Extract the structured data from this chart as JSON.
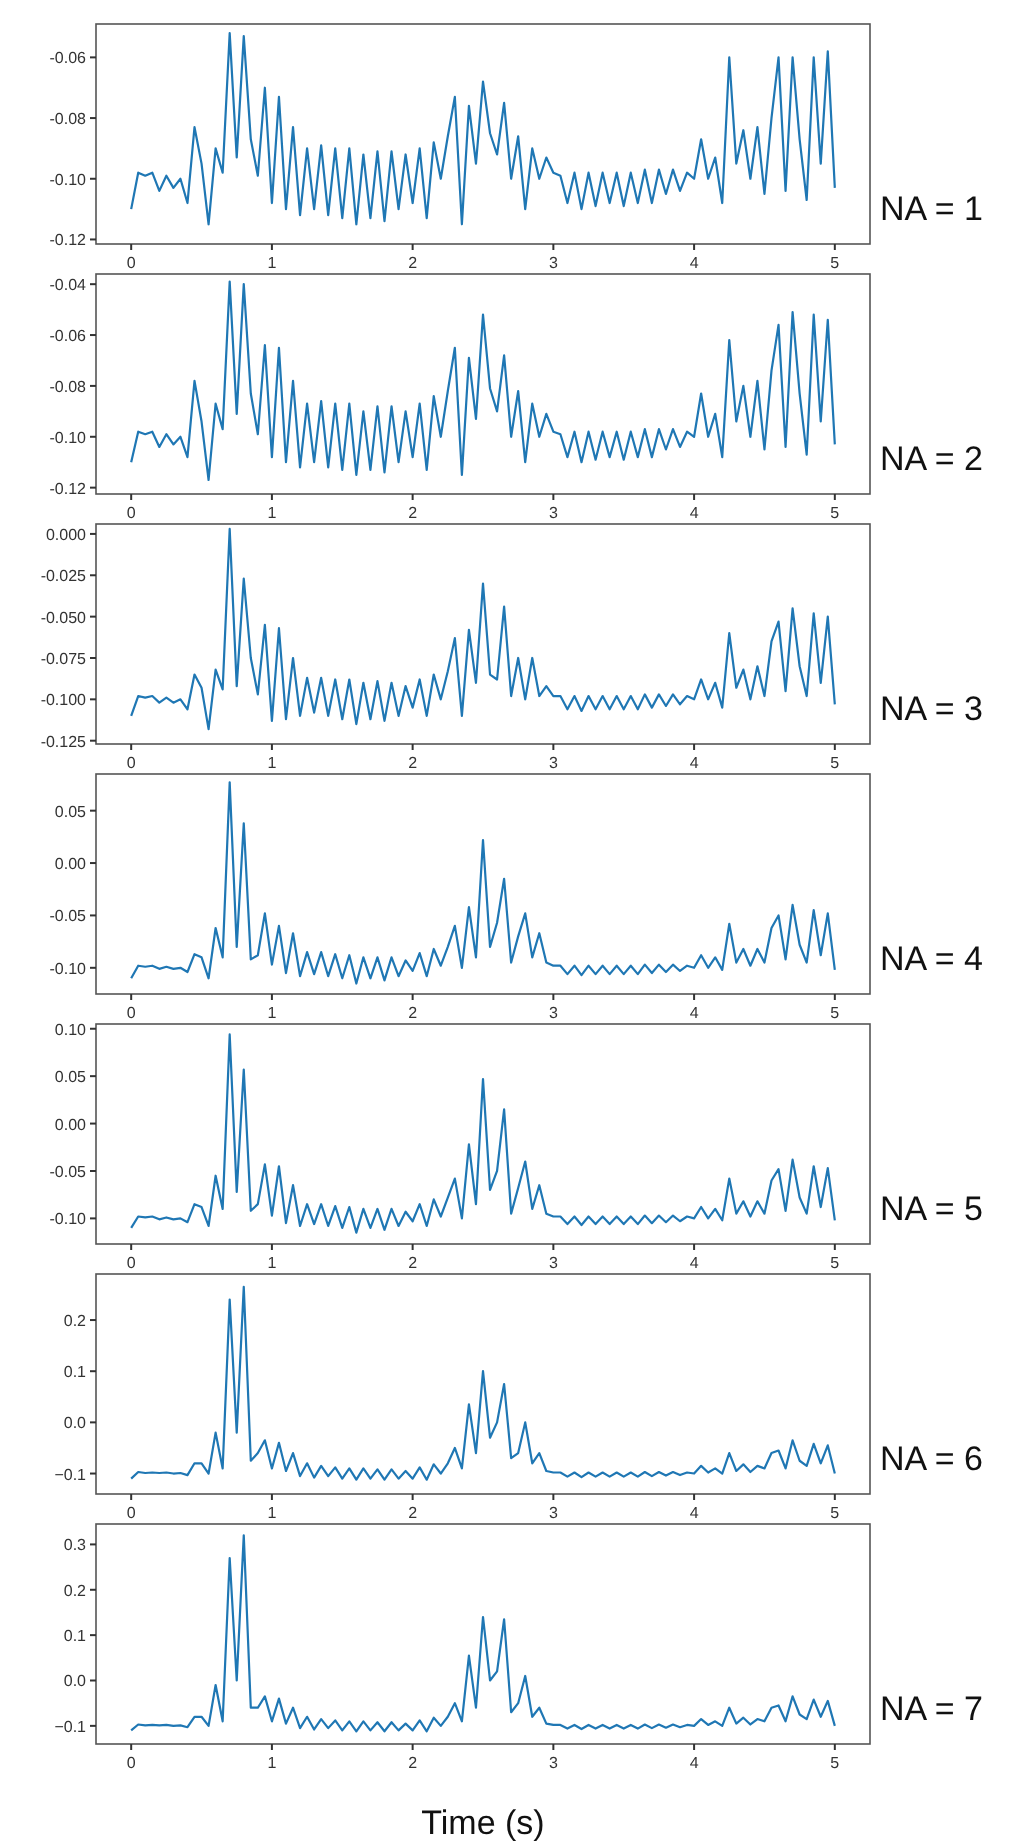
{
  "chart_data": [
    {
      "type": "line",
      "title": "NA = 1",
      "x": [
        0,
        0.05,
        0.1,
        0.15,
        0.2,
        0.25,
        0.3,
        0.35,
        0.4,
        0.45,
        0.5,
        0.55,
        0.6,
        0.65,
        0.7,
        0.75,
        0.8,
        0.85,
        0.9,
        0.95,
        1,
        1.05,
        1.1,
        1.15,
        1.2,
        1.25,
        1.3,
        1.35,
        1.4,
        1.45,
        1.5,
        1.55,
        1.6,
        1.65,
        1.7,
        1.75,
        1.8,
        1.85,
        1.9,
        1.95,
        2,
        2.05,
        2.1,
        2.15,
        2.2,
        2.25,
        2.3,
        2.35,
        2.4,
        2.45,
        2.5,
        2.55,
        2.6,
        2.65,
        2.7,
        2.75,
        2.8,
        2.85,
        2.9,
        2.95,
        3,
        3.05,
        3.1,
        3.15,
        3.2,
        3.25,
        3.3,
        3.35,
        3.4,
        3.45,
        3.5,
        3.55,
        3.6,
        3.65,
        3.7,
        3.75,
        3.8,
        3.85,
        3.9,
        3.95,
        4,
        4.05,
        4.1,
        4.15,
        4.2,
        4.25,
        4.3,
        4.35,
        4.4,
        4.45,
        4.5,
        4.55,
        4.6,
        4.65,
        4.7,
        4.75,
        4.8,
        4.85,
        4.9,
        4.95,
        5
      ],
      "xlim": [
        -0.25,
        5.25
      ],
      "xticks": [
        0,
        1,
        2,
        3,
        4,
        5
      ],
      "ylim": [
        -0.1215,
        -0.049
      ],
      "yticks": [
        {
          "value": -0.12,
          "label": "-0.12"
        },
        {
          "value": -0.1,
          "label": "-0.10"
        },
        {
          "value": -0.08,
          "label": "-0.08"
        },
        {
          "value": -0.06,
          "label": "-0.06"
        }
      ],
      "series": [
        {
          "color": "#1f77b4",
          "values": [
            -0.11,
            -0.098,
            -0.099,
            -0.098,
            -0.104,
            -0.099,
            -0.103,
            -0.1,
            -0.108,
            -0.083,
            -0.095,
            -0.115,
            -0.09,
            -0.098,
            -0.052,
            -0.093,
            -0.053,
            -0.087,
            -0.099,
            -0.07,
            -0.108,
            -0.073,
            -0.11,
            -0.083,
            -0.112,
            -0.09,
            -0.11,
            -0.089,
            -0.112,
            -0.09,
            -0.113,
            -0.09,
            -0.115,
            -0.092,
            -0.113,
            -0.091,
            -0.114,
            -0.091,
            -0.11,
            -0.092,
            -0.108,
            -0.09,
            -0.113,
            -0.088,
            -0.1,
            -0.086,
            -0.073,
            -0.115,
            -0.076,
            -0.095,
            -0.068,
            -0.085,
            -0.092,
            -0.075,
            -0.1,
            -0.086,
            -0.11,
            -0.09,
            -0.1,
            -0.093,
            -0.098,
            -0.099,
            -0.108,
            -0.098,
            -0.11,
            -0.098,
            -0.109,
            -0.098,
            -0.108,
            -0.098,
            -0.109,
            -0.098,
            -0.108,
            -0.097,
            -0.108,
            -0.097,
            -0.105,
            -0.097,
            -0.104,
            -0.098,
            -0.1,
            -0.087,
            -0.1,
            -0.093,
            -0.108,
            -0.06,
            -0.095,
            -0.084,
            -0.1,
            -0.083,
            -0.105,
            -0.08,
            -0.06,
            -0.104,
            -0.06,
            -0.087,
            -0.107,
            -0.06,
            -0.095,
            -0.058,
            -0.103
          ]
        }
      ]
    },
    {
      "type": "line",
      "title": "NA = 2",
      "x": [
        0,
        0.05,
        0.1,
        0.15,
        0.2,
        0.25,
        0.3,
        0.35,
        0.4,
        0.45,
        0.5,
        0.55,
        0.6,
        0.65,
        0.7,
        0.75,
        0.8,
        0.85,
        0.9,
        0.95,
        1,
        1.05,
        1.1,
        1.15,
        1.2,
        1.25,
        1.3,
        1.35,
        1.4,
        1.45,
        1.5,
        1.55,
        1.6,
        1.65,
        1.7,
        1.75,
        1.8,
        1.85,
        1.9,
        1.95,
        2,
        2.05,
        2.1,
        2.15,
        2.2,
        2.25,
        2.3,
        2.35,
        2.4,
        2.45,
        2.5,
        2.55,
        2.6,
        2.65,
        2.7,
        2.75,
        2.8,
        2.85,
        2.9,
        2.95,
        3,
        3.05,
        3.1,
        3.15,
        3.2,
        3.25,
        3.3,
        3.35,
        3.4,
        3.45,
        3.5,
        3.55,
        3.6,
        3.65,
        3.7,
        3.75,
        3.8,
        3.85,
        3.9,
        3.95,
        4,
        4.05,
        4.1,
        4.15,
        4.2,
        4.25,
        4.3,
        4.35,
        4.4,
        4.45,
        4.5,
        4.55,
        4.6,
        4.65,
        4.7,
        4.75,
        4.8,
        4.85,
        4.9,
        4.95,
        5
      ],
      "xlim": [
        -0.25,
        5.25
      ],
      "xticks": [
        0,
        1,
        2,
        3,
        4,
        5
      ],
      "ylim": [
        -0.1225,
        -0.036
      ],
      "yticks": [
        {
          "value": -0.12,
          "label": "-0.12"
        },
        {
          "value": -0.1,
          "label": "-0.10"
        },
        {
          "value": -0.08,
          "label": "-0.08"
        },
        {
          "value": -0.06,
          "label": "-0.06"
        },
        {
          "value": -0.04,
          "label": "-0.04"
        }
      ],
      "series": [
        {
          "color": "#1f77b4",
          "values": [
            -0.11,
            -0.098,
            -0.099,
            -0.098,
            -0.104,
            -0.099,
            -0.103,
            -0.1,
            -0.108,
            -0.078,
            -0.094,
            -0.117,
            -0.087,
            -0.097,
            -0.039,
            -0.091,
            -0.04,
            -0.083,
            -0.099,
            -0.064,
            -0.108,
            -0.065,
            -0.11,
            -0.078,
            -0.112,
            -0.087,
            -0.11,
            -0.086,
            -0.112,
            -0.087,
            -0.113,
            -0.087,
            -0.115,
            -0.09,
            -0.113,
            -0.088,
            -0.114,
            -0.088,
            -0.11,
            -0.09,
            -0.108,
            -0.087,
            -0.113,
            -0.084,
            -0.1,
            -0.082,
            -0.065,
            -0.115,
            -0.069,
            -0.093,
            -0.052,
            -0.081,
            -0.09,
            -0.068,
            -0.1,
            -0.082,
            -0.11,
            -0.087,
            -0.1,
            -0.091,
            -0.098,
            -0.099,
            -0.108,
            -0.098,
            -0.11,
            -0.098,
            -0.109,
            -0.098,
            -0.108,
            -0.098,
            -0.109,
            -0.098,
            -0.108,
            -0.097,
            -0.108,
            -0.097,
            -0.105,
            -0.097,
            -0.104,
            -0.098,
            -0.1,
            -0.083,
            -0.1,
            -0.091,
            -0.108,
            -0.062,
            -0.094,
            -0.08,
            -0.1,
            -0.078,
            -0.105,
            -0.074,
            -0.056,
            -0.104,
            -0.051,
            -0.083,
            -0.107,
            -0.052,
            -0.094,
            -0.054,
            -0.103
          ]
        }
      ]
    },
    {
      "type": "line",
      "title": "NA = 3",
      "x": [
        0,
        0.05,
        0.1,
        0.15,
        0.2,
        0.25,
        0.3,
        0.35,
        0.4,
        0.45,
        0.5,
        0.55,
        0.6,
        0.65,
        0.7,
        0.75,
        0.8,
        0.85,
        0.9,
        0.95,
        1,
        1.05,
        1.1,
        1.15,
        1.2,
        1.25,
        1.3,
        1.35,
        1.4,
        1.45,
        1.5,
        1.55,
        1.6,
        1.65,
        1.7,
        1.75,
        1.8,
        1.85,
        1.9,
        1.95,
        2,
        2.05,
        2.1,
        2.15,
        2.2,
        2.25,
        2.3,
        2.35,
        2.4,
        2.45,
        2.5,
        2.55,
        2.6,
        2.65,
        2.7,
        2.75,
        2.8,
        2.85,
        2.9,
        2.95,
        3,
        3.05,
        3.1,
        3.15,
        3.2,
        3.25,
        3.3,
        3.35,
        3.4,
        3.45,
        3.5,
        3.55,
        3.6,
        3.65,
        3.7,
        3.75,
        3.8,
        3.85,
        3.9,
        3.95,
        4,
        4.05,
        4.1,
        4.15,
        4.2,
        4.25,
        4.3,
        4.35,
        4.4,
        4.45,
        4.5,
        4.55,
        4.6,
        4.65,
        4.7,
        4.75,
        4.8,
        4.85,
        4.9,
        4.95,
        5
      ],
      "xlim": [
        -0.25,
        5.25
      ],
      "xticks": [
        0,
        1,
        2,
        3,
        4,
        5
      ],
      "ylim": [
        -0.127,
        0.006
      ],
      "yticks": [
        {
          "value": -0.125,
          "label": "-0.125"
        },
        {
          "value": -0.1,
          "label": "-0.100"
        },
        {
          "value": -0.075,
          "label": "-0.075"
        },
        {
          "value": -0.05,
          "label": "-0.050"
        },
        {
          "value": -0.025,
          "label": "-0.025"
        },
        {
          "value": 0,
          "label": "0.000"
        }
      ],
      "series": [
        {
          "color": "#1f77b4",
          "values": [
            -0.11,
            -0.098,
            -0.099,
            -0.098,
            -0.102,
            -0.099,
            -0.102,
            -0.1,
            -0.106,
            -0.085,
            -0.093,
            -0.118,
            -0.082,
            -0.094,
            0.003,
            -0.092,
            -0.027,
            -0.075,
            -0.097,
            -0.055,
            -0.113,
            -0.057,
            -0.112,
            -0.075,
            -0.11,
            -0.087,
            -0.108,
            -0.087,
            -0.11,
            -0.088,
            -0.112,
            -0.088,
            -0.115,
            -0.09,
            -0.112,
            -0.089,
            -0.113,
            -0.09,
            -0.11,
            -0.092,
            -0.105,
            -0.088,
            -0.11,
            -0.085,
            -0.1,
            -0.083,
            -0.063,
            -0.11,
            -0.058,
            -0.09,
            -0.03,
            -0.085,
            -0.088,
            -0.044,
            -0.098,
            -0.075,
            -0.1,
            -0.075,
            -0.098,
            -0.092,
            -0.098,
            -0.098,
            -0.106,
            -0.098,
            -0.107,
            -0.098,
            -0.106,
            -0.098,
            -0.106,
            -0.098,
            -0.106,
            -0.098,
            -0.106,
            -0.097,
            -0.105,
            -0.097,
            -0.104,
            -0.097,
            -0.103,
            -0.098,
            -0.1,
            -0.088,
            -0.1,
            -0.09,
            -0.105,
            -0.06,
            -0.093,
            -0.082,
            -0.1,
            -0.08,
            -0.098,
            -0.065,
            -0.053,
            -0.095,
            -0.045,
            -0.08,
            -0.098,
            -0.048,
            -0.09,
            -0.05,
            -0.103
          ]
        }
      ]
    },
    {
      "type": "line",
      "title": "NA = 4",
      "x": [
        0,
        0.05,
        0.1,
        0.15,
        0.2,
        0.25,
        0.3,
        0.35,
        0.4,
        0.45,
        0.5,
        0.55,
        0.6,
        0.65,
        0.7,
        0.75,
        0.8,
        0.85,
        0.9,
        0.95,
        1,
        1.05,
        1.1,
        1.15,
        1.2,
        1.25,
        1.3,
        1.35,
        1.4,
        1.45,
        1.5,
        1.55,
        1.6,
        1.65,
        1.7,
        1.75,
        1.8,
        1.85,
        1.9,
        1.95,
        2,
        2.05,
        2.1,
        2.15,
        2.2,
        2.25,
        2.3,
        2.35,
        2.4,
        2.45,
        2.5,
        2.55,
        2.6,
        2.65,
        2.7,
        2.75,
        2.8,
        2.85,
        2.9,
        2.95,
        3,
        3.05,
        3.1,
        3.15,
        3.2,
        3.25,
        3.3,
        3.35,
        3.4,
        3.45,
        3.5,
        3.55,
        3.6,
        3.65,
        3.7,
        3.75,
        3.8,
        3.85,
        3.9,
        3.95,
        4,
        4.05,
        4.1,
        4.15,
        4.2,
        4.25,
        4.3,
        4.35,
        4.4,
        4.45,
        4.5,
        4.55,
        4.6,
        4.65,
        4.7,
        4.75,
        4.8,
        4.85,
        4.9,
        4.95,
        5
      ],
      "xlim": [
        -0.25,
        5.25
      ],
      "xticks": [
        0,
        1,
        2,
        3,
        4,
        5
      ],
      "ylim": [
        -0.125,
        0.085
      ],
      "yticks": [
        {
          "value": -0.1,
          "label": "-0.10"
        },
        {
          "value": -0.05,
          "label": "-0.05"
        },
        {
          "value": 0,
          "label": "0.00"
        },
        {
          "value": 0.05,
          "label": "0.05"
        }
      ],
      "series": [
        {
          "color": "#1f77b4",
          "values": [
            -0.11,
            -0.098,
            -0.099,
            -0.098,
            -0.101,
            -0.099,
            -0.101,
            -0.1,
            -0.104,
            -0.087,
            -0.09,
            -0.11,
            -0.062,
            -0.09,
            0.077,
            -0.08,
            0.038,
            -0.092,
            -0.088,
            -0.048,
            -0.097,
            -0.06,
            -0.105,
            -0.067,
            -0.108,
            -0.085,
            -0.106,
            -0.085,
            -0.108,
            -0.087,
            -0.11,
            -0.088,
            -0.115,
            -0.09,
            -0.11,
            -0.09,
            -0.112,
            -0.09,
            -0.108,
            -0.093,
            -0.103,
            -0.086,
            -0.108,
            -0.082,
            -0.098,
            -0.08,
            -0.06,
            -0.1,
            -0.042,
            -0.09,
            0.022,
            -0.08,
            -0.057,
            -0.015,
            -0.095,
            -0.07,
            -0.048,
            -0.09,
            -0.067,
            -0.095,
            -0.098,
            -0.098,
            -0.106,
            -0.098,
            -0.107,
            -0.098,
            -0.106,
            -0.098,
            -0.106,
            -0.098,
            -0.106,
            -0.098,
            -0.106,
            -0.097,
            -0.105,
            -0.097,
            -0.104,
            -0.097,
            -0.103,
            -0.098,
            -0.1,
            -0.088,
            -0.1,
            -0.09,
            -0.102,
            -0.058,
            -0.095,
            -0.082,
            -0.098,
            -0.082,
            -0.095,
            -0.062,
            -0.05,
            -0.092,
            -0.04,
            -0.078,
            -0.095,
            -0.045,
            -0.088,
            -0.048,
            -0.102
          ]
        }
      ]
    },
    {
      "type": "line",
      "title": "NA = 5",
      "x": [
        0,
        0.05,
        0.1,
        0.15,
        0.2,
        0.25,
        0.3,
        0.35,
        0.4,
        0.45,
        0.5,
        0.55,
        0.6,
        0.65,
        0.7,
        0.75,
        0.8,
        0.85,
        0.9,
        0.95,
        1,
        1.05,
        1.1,
        1.15,
        1.2,
        1.25,
        1.3,
        1.35,
        1.4,
        1.45,
        1.5,
        1.55,
        1.6,
        1.65,
        1.7,
        1.75,
        1.8,
        1.85,
        1.9,
        1.95,
        2,
        2.05,
        2.1,
        2.15,
        2.2,
        2.25,
        2.3,
        2.35,
        2.4,
        2.45,
        2.5,
        2.55,
        2.6,
        2.65,
        2.7,
        2.75,
        2.8,
        2.85,
        2.9,
        2.95,
        3,
        3.05,
        3.1,
        3.15,
        3.2,
        3.25,
        3.3,
        3.35,
        3.4,
        3.45,
        3.5,
        3.55,
        3.6,
        3.65,
        3.7,
        3.75,
        3.8,
        3.85,
        3.9,
        3.95,
        4,
        4.05,
        4.1,
        4.15,
        4.2,
        4.25,
        4.3,
        4.35,
        4.4,
        4.45,
        4.5,
        4.55,
        4.6,
        4.65,
        4.7,
        4.75,
        4.8,
        4.85,
        4.9,
        4.95,
        5
      ],
      "xlim": [
        -0.25,
        5.25
      ],
      "xticks": [
        0,
        1,
        2,
        3,
        4,
        5
      ],
      "ylim": [
        -0.127,
        0.105
      ],
      "yticks": [
        {
          "value": -0.1,
          "label": "-0.10"
        },
        {
          "value": -0.05,
          "label": "-0.05"
        },
        {
          "value": 0,
          "label": "0.00"
        },
        {
          "value": 0.05,
          "label": "0.05"
        },
        {
          "value": 0.1,
          "label": "0.10"
        }
      ],
      "series": [
        {
          "color": "#1f77b4",
          "values": [
            -0.11,
            -0.098,
            -0.099,
            -0.098,
            -0.101,
            -0.099,
            -0.101,
            -0.1,
            -0.104,
            -0.085,
            -0.088,
            -0.108,
            -0.055,
            -0.09,
            0.094,
            -0.072,
            0.057,
            -0.092,
            -0.085,
            -0.043,
            -0.097,
            -0.045,
            -0.105,
            -0.065,
            -0.108,
            -0.085,
            -0.106,
            -0.085,
            -0.108,
            -0.087,
            -0.11,
            -0.088,
            -0.115,
            -0.09,
            -0.11,
            -0.09,
            -0.112,
            -0.09,
            -0.108,
            -0.093,
            -0.103,
            -0.085,
            -0.108,
            -0.08,
            -0.098,
            -0.078,
            -0.058,
            -0.1,
            -0.022,
            -0.085,
            0.047,
            -0.07,
            -0.05,
            0.015,
            -0.095,
            -0.068,
            -0.04,
            -0.09,
            -0.065,
            -0.095,
            -0.098,
            -0.098,
            -0.106,
            -0.098,
            -0.107,
            -0.098,
            -0.106,
            -0.098,
            -0.106,
            -0.098,
            -0.106,
            -0.098,
            -0.106,
            -0.097,
            -0.105,
            -0.097,
            -0.104,
            -0.097,
            -0.103,
            -0.098,
            -0.1,
            -0.088,
            -0.1,
            -0.09,
            -0.102,
            -0.058,
            -0.095,
            -0.082,
            -0.098,
            -0.082,
            -0.095,
            -0.06,
            -0.048,
            -0.092,
            -0.038,
            -0.078,
            -0.095,
            -0.045,
            -0.088,
            -0.047,
            -0.102
          ]
        }
      ]
    },
    {
      "type": "line",
      "title": "NA = 6",
      "x": [
        0,
        0.05,
        0.1,
        0.15,
        0.2,
        0.25,
        0.3,
        0.35,
        0.4,
        0.45,
        0.5,
        0.55,
        0.6,
        0.65,
        0.7,
        0.75,
        0.8,
        0.85,
        0.9,
        0.95,
        1,
        1.05,
        1.1,
        1.15,
        1.2,
        1.25,
        1.3,
        1.35,
        1.4,
        1.45,
        1.5,
        1.55,
        1.6,
        1.65,
        1.7,
        1.75,
        1.8,
        1.85,
        1.9,
        1.95,
        2,
        2.05,
        2.1,
        2.15,
        2.2,
        2.25,
        2.3,
        2.35,
        2.4,
        2.45,
        2.5,
        2.55,
        2.6,
        2.65,
        2.7,
        2.75,
        2.8,
        2.85,
        2.9,
        2.95,
        3,
        3.05,
        3.1,
        3.15,
        3.2,
        3.25,
        3.3,
        3.35,
        3.4,
        3.45,
        3.5,
        3.55,
        3.6,
        3.65,
        3.7,
        3.75,
        3.8,
        3.85,
        3.9,
        3.95,
        4,
        4.05,
        4.1,
        4.15,
        4.2,
        4.25,
        4.3,
        4.35,
        4.4,
        4.45,
        4.5,
        4.55,
        4.6,
        4.65,
        4.7,
        4.75,
        4.8,
        4.85,
        4.9,
        4.95,
        5
      ],
      "xlim": [
        -0.25,
        5.25
      ],
      "xticks": [
        0,
        1,
        2,
        3,
        4,
        5
      ],
      "ylim": [
        -0.14,
        0.29
      ],
      "yticks": [
        {
          "value": -0.1,
          "label": "−0.1"
        },
        {
          "value": 0,
          "label": "0.0"
        },
        {
          "value": 0.1,
          "label": "0.1"
        },
        {
          "value": 0.2,
          "label": "0.2"
        }
      ],
      "series": [
        {
          "color": "#1f77b4",
          "values": [
            -0.11,
            -0.097,
            -0.099,
            -0.098,
            -0.099,
            -0.098,
            -0.1,
            -0.099,
            -0.103,
            -0.08,
            -0.08,
            -0.1,
            -0.02,
            -0.09,
            0.24,
            -0.02,
            0.265,
            -0.075,
            -0.06,
            -0.035,
            -0.09,
            -0.04,
            -0.095,
            -0.06,
            -0.105,
            -0.08,
            -0.108,
            -0.085,
            -0.105,
            -0.088,
            -0.11,
            -0.09,
            -0.112,
            -0.09,
            -0.11,
            -0.092,
            -0.112,
            -0.092,
            -0.11,
            -0.095,
            -0.11,
            -0.088,
            -0.112,
            -0.082,
            -0.1,
            -0.08,
            -0.05,
            -0.09,
            0.035,
            -0.06,
            0.1,
            -0.03,
            0.0,
            0.075,
            -0.07,
            -0.06,
            0.0,
            -0.08,
            -0.06,
            -0.095,
            -0.098,
            -0.098,
            -0.106,
            -0.098,
            -0.107,
            -0.098,
            -0.106,
            -0.098,
            -0.106,
            -0.098,
            -0.106,
            -0.098,
            -0.106,
            -0.097,
            -0.105,
            -0.097,
            -0.104,
            -0.097,
            -0.103,
            -0.098,
            -0.1,
            -0.085,
            -0.098,
            -0.09,
            -0.1,
            -0.06,
            -0.095,
            -0.082,
            -0.097,
            -0.085,
            -0.09,
            -0.06,
            -0.055,
            -0.09,
            -0.035,
            -0.075,
            -0.085,
            -0.042,
            -0.08,
            -0.045,
            -0.1
          ]
        }
      ]
    },
    {
      "type": "line",
      "title": "NA = 7",
      "xlabel": "Time (s)",
      "x": [
        0,
        0.05,
        0.1,
        0.15,
        0.2,
        0.25,
        0.3,
        0.35,
        0.4,
        0.45,
        0.5,
        0.55,
        0.6,
        0.65,
        0.7,
        0.75,
        0.8,
        0.85,
        0.9,
        0.95,
        1,
        1.05,
        1.1,
        1.15,
        1.2,
        1.25,
        1.3,
        1.35,
        1.4,
        1.45,
        1.5,
        1.55,
        1.6,
        1.65,
        1.7,
        1.75,
        1.8,
        1.85,
        1.9,
        1.95,
        2,
        2.05,
        2.1,
        2.15,
        2.2,
        2.25,
        2.3,
        2.35,
        2.4,
        2.45,
        2.5,
        2.55,
        2.6,
        2.65,
        2.7,
        2.75,
        2.8,
        2.85,
        2.9,
        2.95,
        3,
        3.05,
        3.1,
        3.15,
        3.2,
        3.25,
        3.3,
        3.35,
        3.4,
        3.45,
        3.5,
        3.55,
        3.6,
        3.65,
        3.7,
        3.75,
        3.8,
        3.85,
        3.9,
        3.95,
        4,
        4.05,
        4.1,
        4.15,
        4.2,
        4.25,
        4.3,
        4.35,
        4.4,
        4.45,
        4.5,
        4.55,
        4.6,
        4.65,
        4.7,
        4.75,
        4.8,
        4.85,
        4.9,
        4.95,
        5
      ],
      "xlim": [
        -0.25,
        5.25
      ],
      "xticks": [
        0,
        1,
        2,
        3,
        4,
        5
      ],
      "ylim": [
        -0.14,
        0.345
      ],
      "yticks": [
        {
          "value": -0.1,
          "label": "−0.1"
        },
        {
          "value": 0,
          "label": "0.0"
        },
        {
          "value": 0.1,
          "label": "0.1"
        },
        {
          "value": 0.2,
          "label": "0.2"
        },
        {
          "value": 0.3,
          "label": "0.3"
        }
      ],
      "series": [
        {
          "color": "#1f77b4",
          "values": [
            -0.11,
            -0.097,
            -0.099,
            -0.098,
            -0.099,
            -0.098,
            -0.1,
            -0.099,
            -0.103,
            -0.08,
            -0.08,
            -0.1,
            -0.01,
            -0.09,
            0.27,
            0.0,
            0.32,
            -0.06,
            -0.06,
            -0.035,
            -0.09,
            -0.04,
            -0.095,
            -0.06,
            -0.105,
            -0.08,
            -0.108,
            -0.085,
            -0.105,
            -0.088,
            -0.11,
            -0.09,
            -0.112,
            -0.09,
            -0.11,
            -0.092,
            -0.112,
            -0.092,
            -0.11,
            -0.095,
            -0.11,
            -0.088,
            -0.112,
            -0.082,
            -0.1,
            -0.08,
            -0.05,
            -0.09,
            0.055,
            -0.06,
            0.14,
            0.0,
            0.02,
            0.135,
            -0.07,
            -0.05,
            0.01,
            -0.08,
            -0.06,
            -0.095,
            -0.098,
            -0.098,
            -0.106,
            -0.098,
            -0.107,
            -0.098,
            -0.106,
            -0.098,
            -0.106,
            -0.098,
            -0.106,
            -0.098,
            -0.106,
            -0.097,
            -0.105,
            -0.097,
            -0.104,
            -0.097,
            -0.103,
            -0.098,
            -0.1,
            -0.085,
            -0.098,
            -0.09,
            -0.1,
            -0.06,
            -0.095,
            -0.082,
            -0.097,
            -0.085,
            -0.09,
            -0.06,
            -0.055,
            -0.09,
            -0.035,
            -0.075,
            -0.085,
            -0.042,
            -0.08,
            -0.045,
            -0.1
          ]
        }
      ]
    }
  ]
}
